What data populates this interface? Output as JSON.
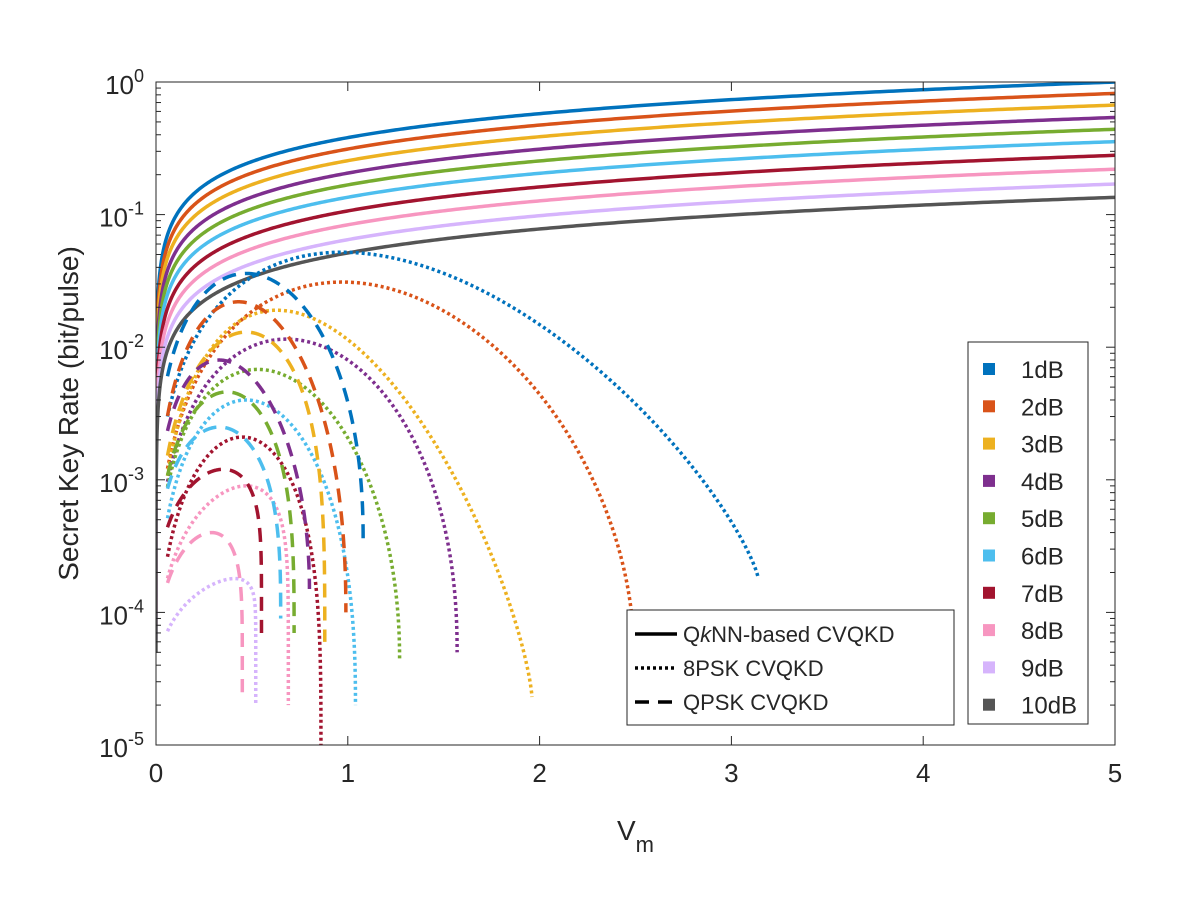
{
  "chart_data": {
    "type": "line",
    "title": "",
    "xlabel": "V",
    "xlabel_sub": "m",
    "ylabel": "Secret Key Rate (bit/pulse)",
    "xscale": "linear",
    "yscale": "log",
    "xlim": [
      0,
      5
    ],
    "ylim": [
      1e-05,
      1
    ],
    "x_ticks": [
      0,
      1,
      2,
      3,
      4,
      5
    ],
    "x_tick_labels": [
      "0",
      "1",
      "2",
      "3",
      "4",
      "5"
    ],
    "y_ticks": [
      1e-05,
      0.0001,
      0.001,
      0.01,
      0.1,
      1
    ],
    "y_tick_base": "10",
    "y_tick_exponents": [
      "-5",
      "-4",
      "-3",
      "-2",
      "-1",
      "0"
    ],
    "grid": false,
    "legend_position": "right",
    "series_legend": [
      {
        "label": "1dB",
        "color": "#0072BD"
      },
      {
        "label": "2dB",
        "color": "#D95319"
      },
      {
        "label": "3dB",
        "color": "#EDB120"
      },
      {
        "label": "4dB",
        "color": "#7E2F8E"
      },
      {
        "label": "5dB",
        "color": "#77AC30"
      },
      {
        "label": "6dB",
        "color": "#4DBEEE"
      },
      {
        "label": "7dB",
        "color": "#A2142F"
      },
      {
        "label": "8dB",
        "color": "#F796C0"
      },
      {
        "label": "9dB",
        "color": "#D6B4FC"
      },
      {
        "label": "10dB",
        "color": "#555555"
      }
    ],
    "style_legend": [
      {
        "label_pre": "Q",
        "label_italic": "k",
        "label_post": "NN-based CVQKD",
        "style": "solid"
      },
      {
        "label_pre": "8PSK CVQKD",
        "label_italic": "",
        "label_post": "",
        "style": "dotted"
      },
      {
        "label_pre": "QPSK CVQKD",
        "label_italic": "",
        "label_post": "",
        "style": "dashed"
      }
    ],
    "qknn_series": [
      {
        "name": "1dB",
        "values_at_xlim_max": 1.0,
        "exponent": 0.6
      },
      {
        "name": "2dB",
        "values_at_xlim_max": 0.82,
        "exponent": 0.6
      },
      {
        "name": "3dB",
        "values_at_xlim_max": 0.67,
        "exponent": 0.6
      },
      {
        "name": "4dB",
        "values_at_xlim_max": 0.54,
        "exponent": 0.6
      },
      {
        "name": "5dB",
        "values_at_xlim_max": 0.44,
        "exponent": 0.6
      },
      {
        "name": "6dB",
        "values_at_xlim_max": 0.355,
        "exponent": 0.6
      },
      {
        "name": "7dB",
        "values_at_xlim_max": 0.28,
        "exponent": 0.6
      },
      {
        "name": "8dB",
        "values_at_xlim_max": 0.22,
        "exponent": 0.6
      },
      {
        "name": "9dB",
        "values_at_xlim_max": 0.17,
        "exponent": 0.6
      },
      {
        "name": "10dB",
        "values_at_xlim_max": 0.135,
        "exponent": 0.6
      }
    ],
    "psk8_series": [
      {
        "name": "1dB",
        "peak_x": 0.97,
        "peak_y": 0.052,
        "end_x": 3.14,
        "end_y": 0.00018
      },
      {
        "name": "2dB",
        "peak_x": 0.97,
        "peak_y": 0.031,
        "end_x": 2.49,
        "end_y": 5.5e-05
      },
      {
        "name": "3dB",
        "peak_x": 0.63,
        "peak_y": 0.019,
        "end_x": 1.96,
        "end_y": 2.3e-05
      },
      {
        "name": "4dB",
        "peak_x": 0.68,
        "peak_y": 0.0115,
        "end_x": 1.57,
        "end_y": 5e-05
      },
      {
        "name": "5dB",
        "peak_x": 0.53,
        "peak_y": 0.0068,
        "end_x": 1.27,
        "end_y": 4.5e-05
      },
      {
        "name": "6dB",
        "peak_x": 0.47,
        "peak_y": 0.004,
        "end_x": 1.04,
        "end_y": 2e-05
      },
      {
        "name": "7dB",
        "peak_x": 0.45,
        "peak_y": 0.0021,
        "end_x": 0.86,
        "end_y": 1e-05
      },
      {
        "name": "8dB",
        "peak_x": 0.47,
        "peak_y": 0.0009,
        "end_x": 0.69,
        "end_y": 2e-05
      },
      {
        "name": "9dB",
        "peak_x": 0.41,
        "peak_y": 0.00018,
        "end_x": 0.52,
        "end_y": 2e-05
      }
    ],
    "qpsk_series": [
      {
        "name": "1dB",
        "peak_x": 0.47,
        "peak_y": 0.036,
        "end_x": 1.08,
        "end_y": 0.00035
      },
      {
        "name": "2dB",
        "peak_x": 0.43,
        "peak_y": 0.022,
        "end_x": 0.99,
        "end_y": 0.0001
      },
      {
        "name": "3dB",
        "peak_x": 0.47,
        "peak_y": 0.013,
        "end_x": 0.88,
        "end_y": 6e-05
      },
      {
        "name": "4dB",
        "peak_x": 0.33,
        "peak_y": 0.008,
        "end_x": 0.8,
        "end_y": 0.00015
      },
      {
        "name": "5dB",
        "peak_x": 0.37,
        "peak_y": 0.0046,
        "end_x": 0.72,
        "end_y": 7e-05
      },
      {
        "name": "6dB",
        "peak_x": 0.33,
        "peak_y": 0.0025,
        "end_x": 0.65,
        "end_y": 9e-05
      },
      {
        "name": "7dB",
        "peak_x": 0.35,
        "peak_y": 0.0012,
        "end_x": 0.55,
        "end_y": 7e-05
      },
      {
        "name": "8dB",
        "peak_x": 0.29,
        "peak_y": 0.0004,
        "end_x": 0.45,
        "end_y": 2.5e-05
      }
    ]
  }
}
